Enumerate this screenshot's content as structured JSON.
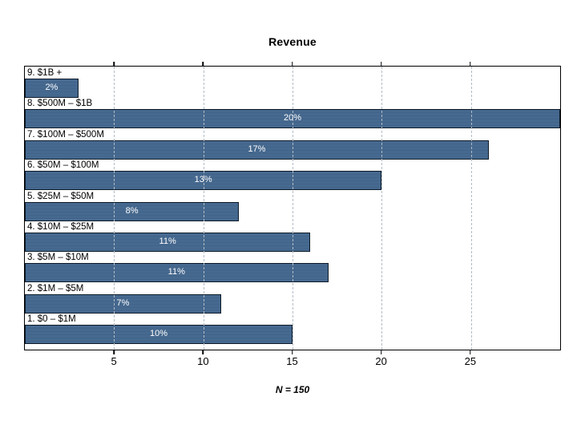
{
  "chart_data": {
    "type": "bar",
    "orientation": "horizontal",
    "title": "Revenue",
    "note": "N = 150",
    "categories": [
      "9. $1B +",
      "8. $500M – $1B",
      "7. $100M – $500M",
      "6. $50M – $100M",
      "5. $25M – $50M",
      "4. $10M – $25M",
      "3. $5M – $10M",
      "2. $1M – $5M",
      "1. $0 – $1M"
    ],
    "values": [
      3,
      30,
      26,
      20,
      12,
      16,
      17,
      11,
      15
    ],
    "bar_labels": [
      "2%",
      "20%",
      "17%",
      "13%",
      "8%",
      "11%",
      "11%",
      "7%",
      "10%"
    ],
    "xlabel": "",
    "ylabel": "",
    "xlim": [
      0,
      30
    ],
    "x_ticks": [
      5,
      10,
      15,
      20,
      25
    ],
    "grid": "vertical-dashed",
    "legend": "none",
    "colors": {
      "bar_fill": "#46698f",
      "bar_border": "#0c1a28",
      "gridline": "#b2bcc6",
      "plot_border": "#000000",
      "bar_label_text": "#ffffff",
      "category_text": "#000000"
    }
  }
}
